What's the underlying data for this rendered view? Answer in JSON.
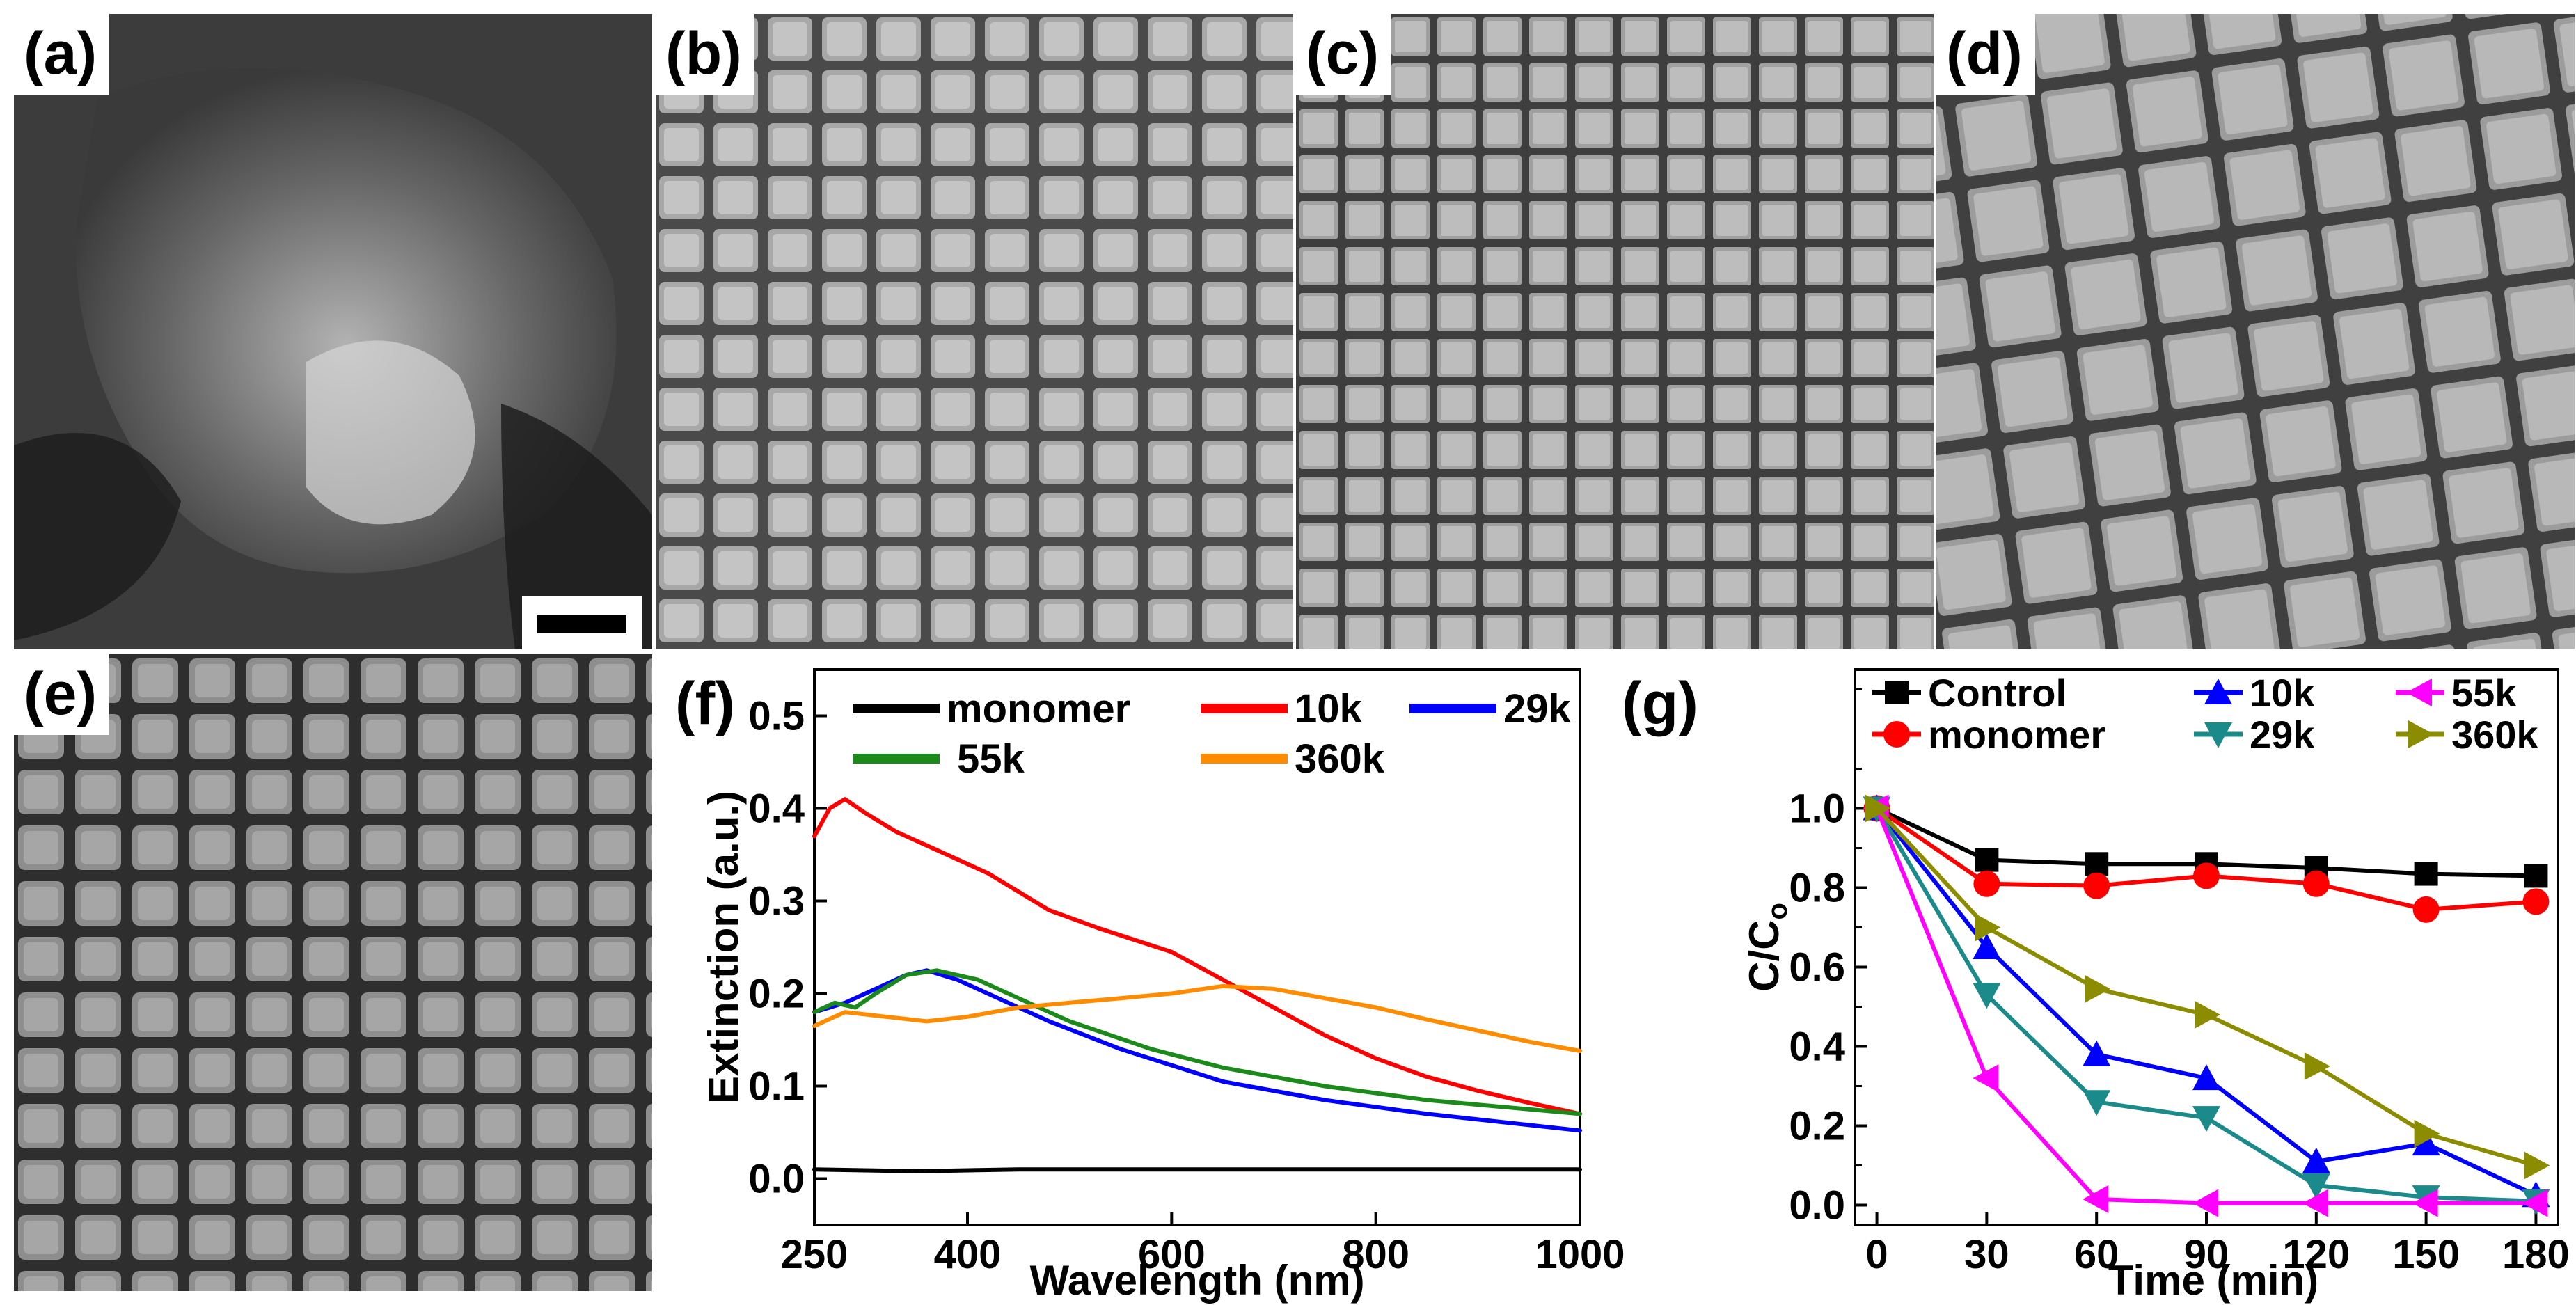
{
  "figure": {
    "panel_labels": [
      "(a)",
      "(b)",
      "(c)",
      "(d)",
      "(e)",
      "(f)",
      "(g)"
    ],
    "sem_images": [
      {
        "panel": "(a)",
        "description": "sem-amorphous-aggregate"
      },
      {
        "panel": "(b)",
        "description": "sem-nanocube-array"
      },
      {
        "panel": "(c)",
        "description": "sem-nanocube-array"
      },
      {
        "panel": "(d)",
        "description": "sem-nanocube-array"
      },
      {
        "panel": "(e)",
        "description": "sem-nanocube-array"
      }
    ],
    "colors": {
      "monomer": "#000000",
      "10k": "#ff0000",
      "29k": "#0000ff",
      "55k": "#1a8a1a",
      "360k": "#ff8c00",
      "g_control": "#000000",
      "g_monomer": "#ff0000",
      "g_10k": "#0000ff",
      "g_29k": "#1a8a8a",
      "g_55k": "#ff00ff",
      "g_360k": "#8c8c00"
    }
  },
  "chart_data": [
    {
      "panel": "(f)",
      "type": "line",
      "title": "",
      "xlabel": "Wavelength (nm)",
      "ylabel": "Extinction (a.u.)",
      "xlim": [
        250,
        1000
      ],
      "ylim": [
        -0.05,
        0.55
      ],
      "xticks": [
        250,
        400,
        600,
        800,
        1000
      ],
      "xtick_labels": [
        "250",
        "400",
        "600",
        "800",
        "1000"
      ],
      "yticks": [
        0.0,
        0.1,
        0.2,
        0.3,
        0.4,
        0.5
      ],
      "ytick_labels": [
        "0.0",
        "0.1",
        "0.2",
        "0.3",
        "0.4",
        "0.5"
      ],
      "legend": [
        "monomer",
        "10k",
        "29k",
        "55k",
        "360k"
      ],
      "series": [
        {
          "name": "monomer",
          "color_key": "monomer",
          "x": [
            250,
            350,
            450,
            550,
            650,
            750,
            850,
            1000
          ],
          "y": [
            0.01,
            0.008,
            0.01,
            0.01,
            0.01,
            0.01,
            0.01,
            0.01
          ]
        },
        {
          "name": "10k",
          "color_key": "10k",
          "x": [
            250,
            265,
            280,
            300,
            330,
            370,
            420,
            480,
            530,
            600,
            650,
            700,
            750,
            800,
            850,
            900,
            950,
            1000
          ],
          "y": [
            0.37,
            0.4,
            0.41,
            0.395,
            0.375,
            0.355,
            0.33,
            0.29,
            0.27,
            0.245,
            0.215,
            0.185,
            0.155,
            0.13,
            0.11,
            0.095,
            0.082,
            0.07
          ]
        },
        {
          "name": "29k",
          "color_key": "29k",
          "x": [
            250,
            280,
            310,
            340,
            360,
            390,
            430,
            480,
            550,
            650,
            750,
            850,
            1000
          ],
          "y": [
            0.18,
            0.19,
            0.205,
            0.22,
            0.225,
            0.215,
            0.195,
            0.17,
            0.14,
            0.105,
            0.085,
            0.07,
            0.052
          ]
        },
        {
          "name": "55k",
          "color_key": "55k",
          "x": [
            250,
            270,
            290,
            310,
            340,
            370,
            410,
            450,
            500,
            580,
            650,
            750,
            850,
            1000
          ],
          "y": [
            0.18,
            0.19,
            0.185,
            0.2,
            0.22,
            0.225,
            0.215,
            0.195,
            0.17,
            0.14,
            0.12,
            0.1,
            0.085,
            0.07
          ]
        },
        {
          "name": "360k",
          "color_key": "360k",
          "x": [
            250,
            280,
            320,
            360,
            400,
            450,
            500,
            550,
            600,
            650,
            700,
            750,
            800,
            850,
            900,
            950,
            1000
          ],
          "y": [
            0.165,
            0.18,
            0.175,
            0.17,
            0.175,
            0.185,
            0.19,
            0.195,
            0.2,
            0.208,
            0.205,
            0.195,
            0.185,
            0.172,
            0.16,
            0.148,
            0.138
          ]
        }
      ]
    },
    {
      "panel": "(g)",
      "type": "line",
      "title": "",
      "xlabel": "Time (min)",
      "ylabel": "C/C",
      "ylabel_subscript": "o",
      "xlim": [
        -6,
        186
      ],
      "ylim": [
        -0.05,
        1.35
      ],
      "xticks": [
        0,
        30,
        60,
        90,
        120,
        150,
        180
      ],
      "xtick_labels": [
        "0",
        "30",
        "60",
        "90",
        "120",
        "150",
        "180"
      ],
      "yticks": [
        0.0,
        0.2,
        0.4,
        0.6,
        0.8,
        1.0
      ],
      "ytick_labels": [
        "0.0",
        "0.2",
        "0.4",
        "0.6",
        "0.8",
        "1.0"
      ],
      "legend": [
        "Control",
        "monomer",
        "10k",
        "29k",
        "55k",
        "360k"
      ],
      "x": [
        0,
        30,
        60,
        90,
        120,
        150,
        180
      ],
      "series": [
        {
          "name": "Control",
          "marker": "square",
          "color_key": "g_control",
          "values": [
            1.0,
            0.87,
            0.86,
            0.86,
            0.85,
            0.835,
            0.83
          ]
        },
        {
          "name": "monomer",
          "marker": "circle",
          "color_key": "g_monomer",
          "values": [
            1.0,
            0.81,
            0.805,
            0.83,
            0.81,
            0.745,
            0.765
          ]
        },
        {
          "name": "10k",
          "marker": "triangle-up",
          "color_key": "g_10k",
          "values": [
            1.0,
            0.65,
            0.38,
            0.32,
            0.11,
            0.155,
            0.025
          ]
        },
        {
          "name": "29k",
          "marker": "triangle-down",
          "color_key": "g_29k",
          "values": [
            1.0,
            0.53,
            0.26,
            0.22,
            0.05,
            0.02,
            0.01
          ]
        },
        {
          "name": "55k",
          "marker": "triangle-left",
          "color_key": "g_55k",
          "values": [
            1.0,
            0.32,
            0.015,
            0.005,
            0.005,
            0.005,
            0.005
          ]
        },
        {
          "name": "360k",
          "marker": "triangle-right",
          "color_key": "g_360k",
          "values": [
            1.0,
            0.7,
            0.545,
            0.48,
            0.35,
            0.18,
            0.1
          ]
        }
      ]
    }
  ]
}
